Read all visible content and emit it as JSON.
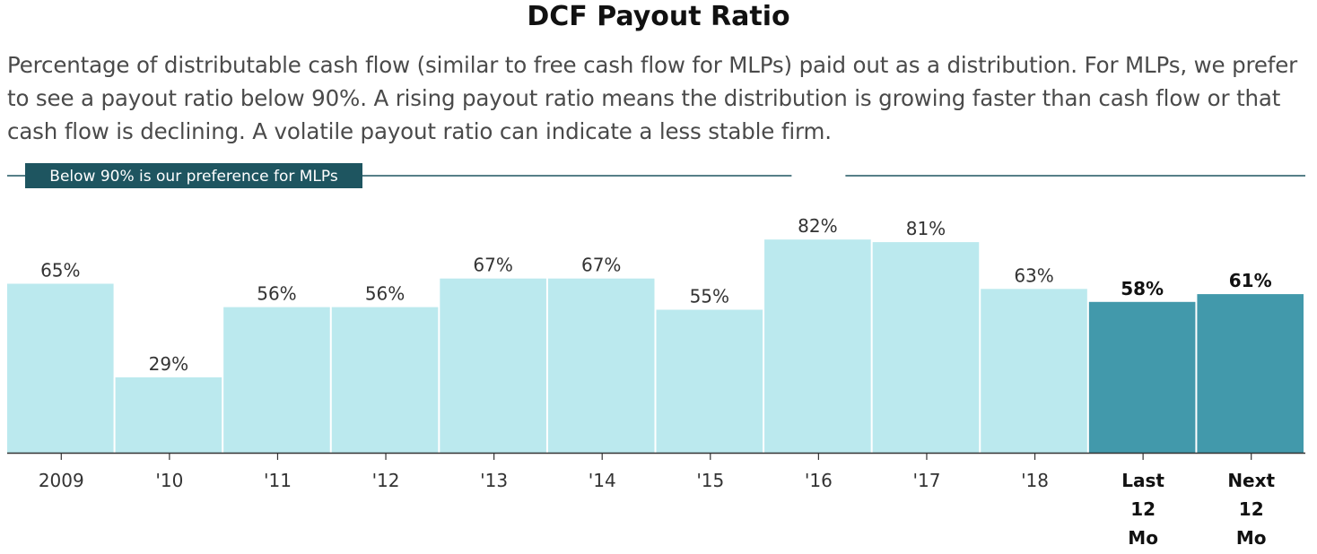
{
  "title": "DCF Payout Ratio",
  "subtitle": "Percentage of distributable cash flow (similar to free cash flow for MLPs) paid out as a distribution. For MLPs, we prefer to see a payout ratio below 90%. A rising payout ratio means the distribution is growing faster than cash flow or that cash flow is declining. A volatile payout ratio can indicate a less stable firm.",
  "colors": {
    "historical_bar": "#bbe9ee",
    "estimate_bar": "#4299ab",
    "reference_line": "#1e5560",
    "axis": "#333333"
  },
  "chart_data": {
    "type": "bar",
    "categories": [
      "2009",
      "'10",
      "'11",
      "'12",
      "'13",
      "'14",
      "'15",
      "'16",
      "'17",
      "'18",
      "Last 12 Mo",
      "Next 12 Mo"
    ],
    "values": [
      65,
      29,
      56,
      56,
      67,
      67,
      55,
      82,
      81,
      63,
      58,
      61
    ],
    "value_labels": [
      "65%",
      "29%",
      "56%",
      "56%",
      "67%",
      "67%",
      "55%",
      "82%",
      "81%",
      "63%",
      "58%",
      "61%"
    ],
    "highlighted": [
      false,
      false,
      false,
      false,
      false,
      false,
      false,
      false,
      false,
      false,
      true,
      true
    ],
    "reference_line": {
      "value": 90,
      "label": "Below 90% is our preference for MLPs"
    },
    "ylim": [
      0,
      90
    ],
    "xlabel": "",
    "ylabel": "",
    "grid": false,
    "legend": "none"
  }
}
